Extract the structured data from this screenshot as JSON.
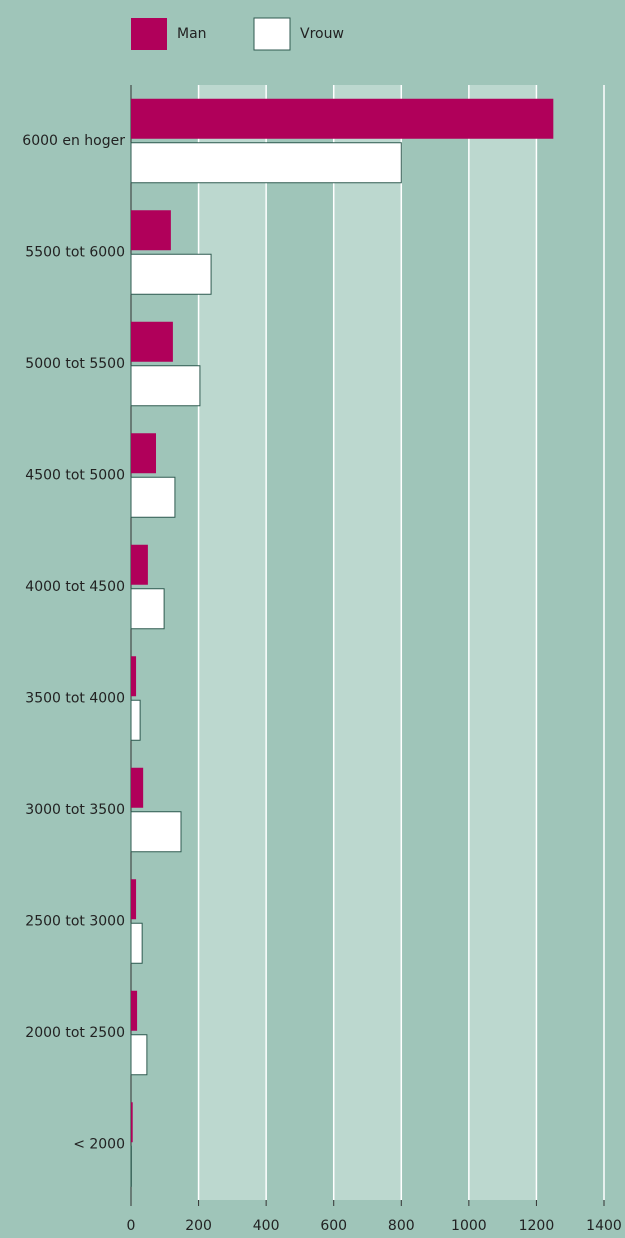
{
  "chart_data": {
    "type": "bar",
    "orientation": "horizontal",
    "categories": [
      "6000 en hoger",
      "5500 tot 6000",
      "5000 tot 5500",
      "4500 tot 5000",
      "4000 tot 4500",
      "3500 tot 4000",
      "3000 tot 3500",
      "2500 tot 3000",
      "2000 tot 2500",
      "< 2000"
    ],
    "series": [
      {
        "name": "Man",
        "color": "#b0005a",
        "values": [
          1250,
          118,
          124,
          74,
          50,
          15,
          36,
          15,
          18,
          5
        ]
      },
      {
        "name": "Vrouw",
        "color": "#ffffff",
        "values": [
          800,
          237,
          204,
          130,
          98,
          27,
          148,
          33,
          47,
          1
        ]
      }
    ],
    "xlim": [
      0,
      1400
    ],
    "xticks": [
      0,
      200,
      400,
      600,
      800,
      1000,
      1200,
      1400
    ],
    "grid": true,
    "legend": "top"
  }
}
